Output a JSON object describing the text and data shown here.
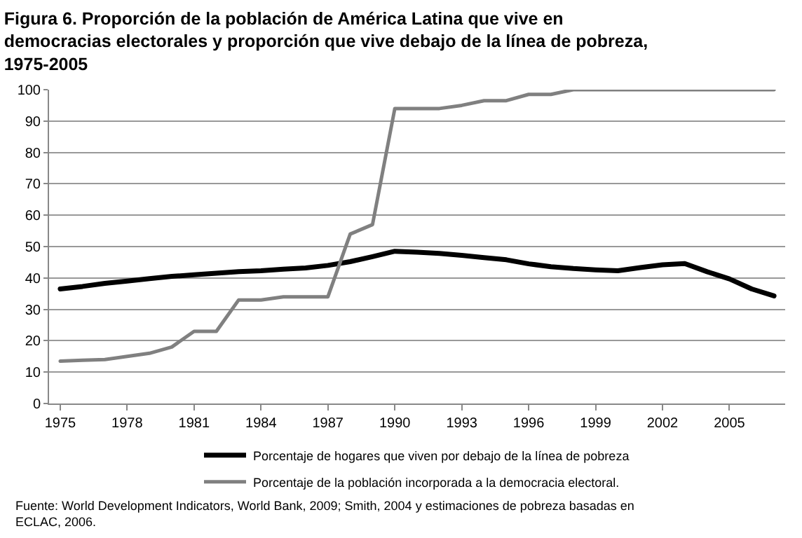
{
  "chart_data": {
    "type": "line",
    "title": "Figura 6. Proporción de la población de América Latina que vive en democracias electorales y proporción que vive debajo de la línea de pobreza, 1975-2005",
    "x": [
      1975,
      1976,
      1977,
      1978,
      1979,
      1980,
      1981,
      1982,
      1983,
      1984,
      1985,
      1986,
      1987,
      1988,
      1989,
      1990,
      1991,
      1992,
      1993,
      1994,
      1995,
      1996,
      1997,
      1998,
      1999,
      2000,
      2001,
      2002,
      2003,
      2004,
      2005,
      2006,
      2007
    ],
    "series": [
      {
        "name": "Porcentaje de hogares que viven por debajo de la línea de pobreza",
        "color": "#000000",
        "values": [
          36.5,
          37.3,
          38.3,
          39,
          39.8,
          40.5,
          41,
          41.5,
          42,
          42.3,
          42.8,
          43.2,
          44,
          45.2,
          46.8,
          48.5,
          48.2,
          47.8,
          47.2,
          46.5,
          45.8,
          44.5,
          43.6,
          43,
          42.6,
          42.3,
          43.3,
          44.2,
          44.6,
          42,
          39.7,
          36.5,
          34.3
        ]
      },
      {
        "name": "Porcentaje de la población incorporada a la democracia electoral.",
        "color": "#808080",
        "values": [
          13.5,
          13.8,
          14,
          15,
          16,
          18,
          23,
          23,
          33,
          33,
          34,
          34,
          34,
          54,
          57,
          94,
          94,
          94,
          95,
          96.5,
          96.5,
          98.5,
          98.5,
          100,
          100,
          100,
          100,
          100,
          100,
          100,
          100,
          100,
          100
        ]
      }
    ],
    "xlim": [
      1974.5,
      2007.5
    ],
    "xticks": [
      1975,
      1978,
      1981,
      1984,
      1987,
      1990,
      1993,
      1996,
      1999,
      2002,
      2005
    ],
    "ylim": [
      0,
      100
    ],
    "yticks": [
      0,
      10,
      20,
      30,
      40,
      50,
      60,
      70,
      80,
      90,
      100
    ],
    "grid": "y",
    "legend": "bottom",
    "marker": "none",
    "line_style": "solid",
    "annotations": [
      "Fuente: World Development Indicators, World Bank, 2009; Smith, 2004 y estimaciones de pobreza basadas en ECLAC, 2006."
    ]
  }
}
